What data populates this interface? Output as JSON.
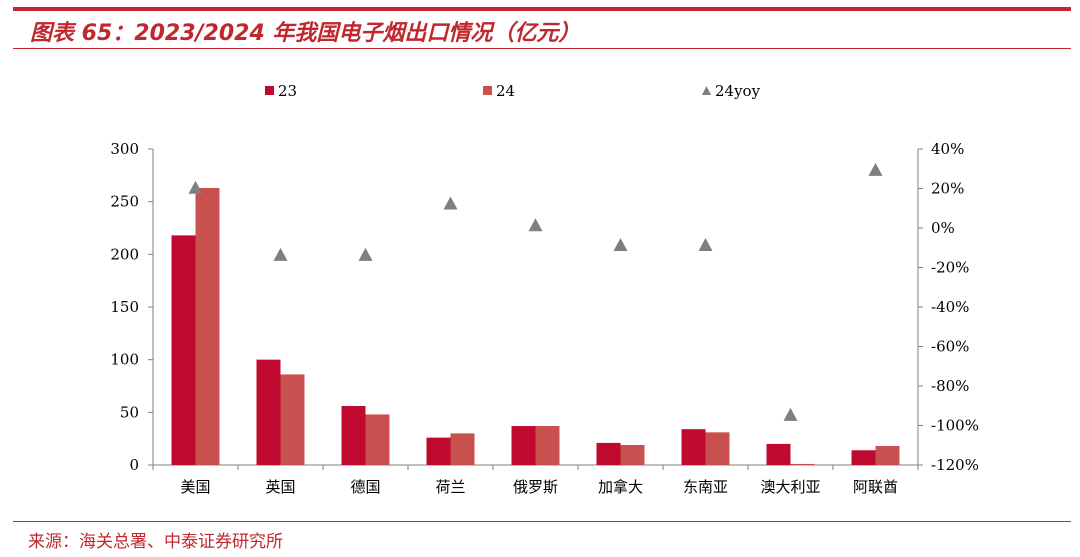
{
  "figure": {
    "title": "图表 65：2023/2024 年我国电子烟出口情况（亿元）",
    "source": "来源：海关总署、中泰证券研究所"
  },
  "chart_data": {
    "type": "bar",
    "categories": [
      "美国",
      "英国",
      "德国",
      "荷兰",
      "俄罗斯",
      "加拿大",
      "东南亚",
      "澳大利亚",
      "阿联酋"
    ],
    "series": [
      {
        "name": "23",
        "kind": "bar",
        "axis": "left",
        "color": "#c0092f",
        "values": [
          218,
          100,
          56,
          26,
          37,
          21,
          34,
          20,
          14
        ]
      },
      {
        "name": "24",
        "kind": "bar",
        "axis": "left",
        "color": "#c8504e",
        "values": [
          263,
          86,
          48,
          30,
          37,
          19,
          31,
          1,
          18
        ]
      },
      {
        "name": "24yoy",
        "kind": "scatter",
        "marker": "triangle",
        "axis": "right",
        "color": "#7f7f7f",
        "values": [
          20,
          -14,
          -14,
          12,
          1,
          -9,
          -9,
          -95,
          29
        ]
      }
    ],
    "y_left": {
      "ylim": [
        0,
        300
      ],
      "ticks": [
        0,
        50,
        100,
        150,
        200,
        250,
        300
      ],
      "tick_labels": [
        "0",
        "50",
        "100",
        "150",
        "200",
        "250",
        "300"
      ]
    },
    "y_right": {
      "ylim": [
        -120,
        40
      ],
      "ticks": [
        -120,
        -100,
        -80,
        -60,
        -40,
        -20,
        0,
        20,
        40
      ],
      "tick_labels": [
        "-120%",
        "-100%",
        "-80%",
        "-60%",
        "-40%",
        "-20%",
        "0%",
        "20%",
        "40%"
      ]
    },
    "legend": [
      "23",
      "24",
      "24yoy"
    ],
    "legend_position": "top",
    "grid": false
  }
}
